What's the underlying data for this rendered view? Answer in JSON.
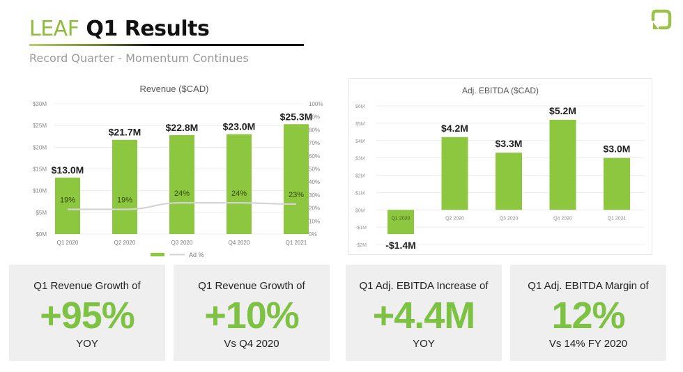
{
  "header": {
    "title_brand": "LEAF",
    "title_rest": "Q1 Results",
    "subtitle": "Record Quarter - Momentum Continues",
    "logo_icon": "leaf-logo-icon"
  },
  "colors": {
    "bar_green": "#8dc63f",
    "kpi_green": "#7dc242",
    "line_gray": "#d4d4d4",
    "brand_green": "#8dbb3c"
  },
  "chart_data": [
    {
      "type": "bar",
      "title": "Revenue ($CAD)",
      "categories": [
        "Q1 2020",
        "Q2 2020",
        "Q3 2020",
        "Q4 2020",
        "Q1 2021"
      ],
      "series": [
        {
          "name": "Revenue",
          "type": "bar",
          "axis": "left",
          "values": [
            13.0,
            21.7,
            22.8,
            23.0,
            25.3
          ],
          "labels": [
            "$13.0M",
            "$21.7M",
            "$22.8M",
            "$23.0M",
            "$25.3M"
          ]
        },
        {
          "name": "Ad %",
          "type": "line",
          "axis": "right",
          "values": [
            19,
            19,
            24,
            24,
            23
          ],
          "labels": [
            "19%",
            "19%",
            "24%",
            "24%",
            "23%"
          ]
        }
      ],
      "yaxis_left": {
        "ticks": [
          "$0M",
          "$5M",
          "$10M",
          "$15M",
          "$20M",
          "$25M",
          "$30M"
        ],
        "range": [
          0,
          30
        ],
        "unit": "$M"
      },
      "yaxis_right": {
        "ticks": [
          "0%",
          "10%",
          "20%",
          "30%",
          "40%",
          "50%",
          "60%",
          "70%",
          "80%",
          "90%",
          "100%"
        ],
        "range": [
          0,
          100
        ],
        "unit": "%"
      },
      "legend": {
        "placement": "bottom",
        "entries": [
          "",
          "Ad %"
        ]
      },
      "grid": true,
      "xlabel": "",
      "ylabel": ""
    },
    {
      "type": "bar",
      "title": "Adj. EBITDA ($CAD)",
      "categories": [
        "Q1 2020",
        "Q2 2020",
        "Q3 2020",
        "Q4 2020",
        "Q1 2021"
      ],
      "series": [
        {
          "name": "Adj. EBITDA",
          "values": [
            -1.4,
            4.2,
            3.3,
            5.2,
            3.0
          ],
          "labels": [
            "-$1.4M",
            "$4.2M",
            "$3.3M",
            "$5.2M",
            "$3.0M"
          ]
        }
      ],
      "yaxis": {
        "ticks": [
          "-$2M",
          "-$1M",
          "$0M",
          "$1M",
          "$2M",
          "$3M",
          "$4M",
          "$5M",
          "$6M"
        ],
        "range": [
          -2,
          6
        ],
        "unit": "$M"
      },
      "grid": true,
      "xlabel": "",
      "ylabel": ""
    }
  ],
  "kpis": [
    {
      "label": "Q1 Revenue Growth of",
      "value": "+95%",
      "sub": "YOY"
    },
    {
      "label": "Q1 Revenue Growth of",
      "value": "+10%",
      "sub": "Vs Q4 2020"
    },
    {
      "label": "Q1 Adj. EBITDA Increase of",
      "value": "+4.4M",
      "sub": "YOY"
    },
    {
      "label": "Q1 Adj. EBITDA Margin of",
      "value": "12%",
      "sub": "Vs 14% FY 2020"
    }
  ]
}
